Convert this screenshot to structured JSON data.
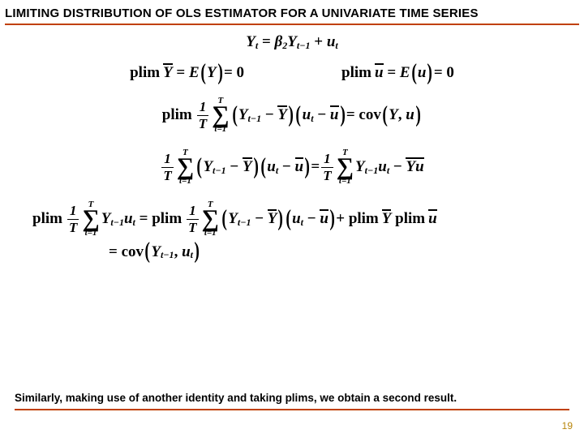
{
  "title": "LIMITING DISTRIBUTION OF OLS ESTIMATOR FOR A UNIVARIATE TIME SERIES",
  "colors": {
    "underline": "#c04000",
    "text": "#000000",
    "pagenum": "#b8860b",
    "background": "#ffffff"
  },
  "equations": {
    "eq1": {
      "lhs_var": "Y",
      "lhs_sub": "t",
      "eq": "=",
      "coef": "β",
      "coef_sub": "2",
      "rhs_var": "Y",
      "rhs_sub": "t−1",
      "plus": "+",
      "err": "u",
      "err_sub": "t"
    },
    "eq2a": {
      "plim": "plim",
      "ybar": "Y",
      "eq": "=",
      "E": "E",
      "arg": "Y",
      "eqz": "= 0"
    },
    "eq2b": {
      "plim": "plim",
      "ubar": "u",
      "eq": "=",
      "E": "E",
      "arg": "u",
      "eqz": "= 0"
    },
    "eq3": {
      "plim": "plim",
      "frac_num": "1",
      "frac_den": "T",
      "sum_top": "T",
      "sum_bot": "t=1",
      "y": "Y",
      "ysub": "t−1",
      "minus1": "−",
      "ybar": "Y",
      "u": "u",
      "usub": "t",
      "minus2": "−",
      "ubar": "u",
      "eq": "=",
      "cov": "cov",
      "covarg1": "Y",
      "comma": ",",
      "covarg2": "u"
    },
    "eq4": {
      "frac_num": "1",
      "frac_den": "T",
      "sum_top": "T",
      "sum_bot": "t=1",
      "y": "Y",
      "ysub": "t−1",
      "minus1": "−",
      "ybar": "Y",
      "u": "u",
      "usub": "t",
      "minus2": "−",
      "ubar": "u",
      "eq": "=",
      "frac2_num": "1",
      "frac2_den": "T",
      "sum2_top": "T",
      "sum2_bot": "t=1",
      "y2": "Y",
      "y2sub": "t−1",
      "u2": "u",
      "u2sub": "t",
      "minus3": "−",
      "ybar2": "Y",
      "ubar2": "u"
    },
    "eq5": {
      "plim": "plim",
      "frac_num": "1",
      "frac_den": "T",
      "sum_top": "T",
      "sum_bot": "t=1",
      "y": "Y",
      "ysub": "t−1",
      "u": "u",
      "usub": "t",
      "eq": "=",
      "plim2": "plim",
      "frac2_num": "1",
      "frac2_den": "T",
      "sum2_top": "T",
      "sum2_bot": "t=1",
      "y2": "Y",
      "y2sub": "t−1",
      "minus1": "−",
      "ybar": "Y",
      "u2": "u",
      "u2sub": "t",
      "minus2": "−",
      "ubar": "u",
      "plus": "+",
      "plim3": "plim",
      "ybar2": "Y",
      "plim4": "plim",
      "ubar2": "u"
    },
    "eq6": {
      "eq": "=",
      "cov": "cov",
      "arg1": "Y",
      "arg1sub": "t−1",
      "comma": ",",
      "arg2": "u",
      "arg2sub": "t"
    }
  },
  "caption": "Similarly, making use of another identity and taking plims, we obtain a second result.",
  "pagenum": "19"
}
